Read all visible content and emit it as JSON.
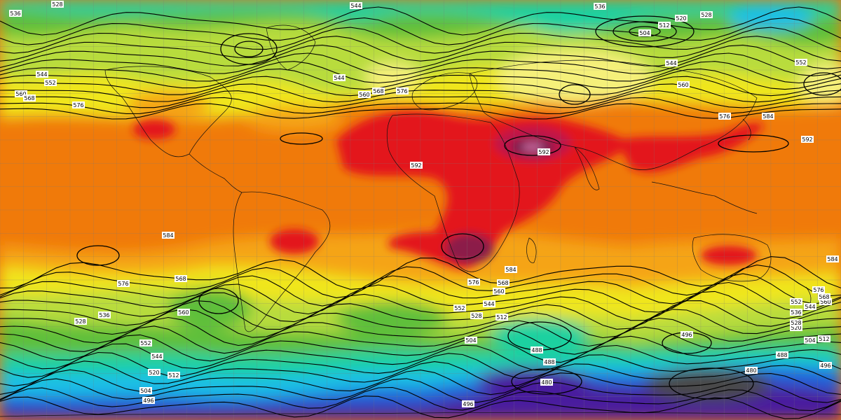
{
  "map": {
    "colors": {
      "deep_red_core": "#6a1f4e",
      "magenta_pink": "#c9659a",
      "red": "#e3151c",
      "orange": "#f07a0a",
      "light_orange": "#f5a414",
      "yellow": "#f0e61e",
      "light_yellow": "#f5f07a",
      "yellow_green": "#b8dc3c",
      "green": "#5fbf3a",
      "teal": "#1fd1a0",
      "cyan": "#1ebfe6",
      "blue": "#2460d8",
      "purple": "#4a1e9e",
      "dark_gray": "#4a4a4a"
    },
    "contour_labels": [
      {
        "id": "l-528-top",
        "text": "528"
      },
      {
        "id": "l-536-tl",
        "text": "536"
      },
      {
        "id": "l-544-top",
        "text": "544"
      },
      {
        "id": "l-536-tr",
        "text": "536"
      },
      {
        "id": "l-528-tr",
        "text": "528"
      },
      {
        "id": "l-520-tr",
        "text": "520"
      },
      {
        "id": "l-512-ne",
        "text": "512"
      },
      {
        "id": "l-504-ne",
        "text": "504"
      },
      {
        "id": "l-552-tr",
        "text": "552"
      },
      {
        "id": "l-544-kamchatka",
        "text": "544"
      },
      {
        "id": "l-560-asia",
        "text": "560"
      },
      {
        "id": "l-544-w1",
        "text": "544"
      },
      {
        "id": "l-552-w1",
        "text": "552"
      },
      {
        "id": "l-560-w1",
        "text": "560"
      },
      {
        "id": "l-568-w1",
        "text": "568"
      },
      {
        "id": "l-576-w1",
        "text": "576"
      },
      {
        "id": "l-544-atl",
        "text": "544"
      },
      {
        "id": "l-560-atl",
        "text": "560"
      },
      {
        "id": "l-568-atl",
        "text": "568"
      },
      {
        "id": "l-576-atl",
        "text": "576"
      },
      {
        "id": "l-592-africa",
        "text": "592"
      },
      {
        "id": "l-592-asia",
        "text": "592"
      },
      {
        "id": "l-576-japan",
        "text": "576"
      },
      {
        "id": "l-584-pac",
        "text": "584"
      },
      {
        "id": "l-592-pac",
        "text": "592"
      },
      {
        "id": "l-584-sw",
        "text": "584"
      },
      {
        "id": "l-576-sw",
        "text": "576"
      },
      {
        "id": "l-568-sw",
        "text": "568"
      },
      {
        "id": "l-560-sw",
        "text": "560"
      },
      {
        "id": "l-552-sw",
        "text": "552"
      },
      {
        "id": "l-528-sw",
        "text": "528"
      },
      {
        "id": "l-536-sw",
        "text": "536"
      },
      {
        "id": "l-544-sw",
        "text": "544"
      },
      {
        "id": "l-520-sw",
        "text": "520"
      },
      {
        "id": "l-512-sw",
        "text": "512"
      },
      {
        "id": "l-504-sw",
        "text": "504"
      },
      {
        "id": "l-496-sw",
        "text": "496"
      },
      {
        "id": "l-584-safr",
        "text": "584"
      },
      {
        "id": "l-576-safr",
        "text": "576"
      },
      {
        "id": "l-568-safr",
        "text": "568"
      },
      {
        "id": "l-560-safr",
        "text": "560"
      },
      {
        "id": "l-552-so",
        "text": "552"
      },
      {
        "id": "l-544-so",
        "text": "544"
      },
      {
        "id": "l-528-so",
        "text": "528"
      },
      {
        "id": "l-512-so",
        "text": "512"
      },
      {
        "id": "l-504-so",
        "text": "504"
      },
      {
        "id": "l-488-so",
        "text": "488"
      },
      {
        "id": "l-488-so2",
        "text": "488"
      },
      {
        "id": "l-480-so",
        "text": "480"
      },
      {
        "id": "l-496-so",
        "text": "496"
      },
      {
        "id": "l-496-se",
        "text": "496"
      },
      {
        "id": "l-488-se",
        "text": "488"
      },
      {
        "id": "l-480-se",
        "text": "480"
      },
      {
        "id": "l-520-se",
        "text": "520"
      },
      {
        "id": "l-504-se",
        "text": "504"
      },
      {
        "id": "l-512-se",
        "text": "512"
      },
      {
        "id": "l-528-se",
        "text": "528"
      },
      {
        "id": "l-536-se",
        "text": "536"
      },
      {
        "id": "l-544-se",
        "text": "544"
      },
      {
        "id": "l-552-se",
        "text": "552"
      },
      {
        "id": "l-560-se",
        "text": "560"
      },
      {
        "id": "l-568-se",
        "text": "568"
      },
      {
        "id": "l-576-se",
        "text": "576"
      },
      {
        "id": "l-584-se",
        "text": "584"
      },
      {
        "id": "l-496-sb",
        "text": "496"
      }
    ]
  }
}
